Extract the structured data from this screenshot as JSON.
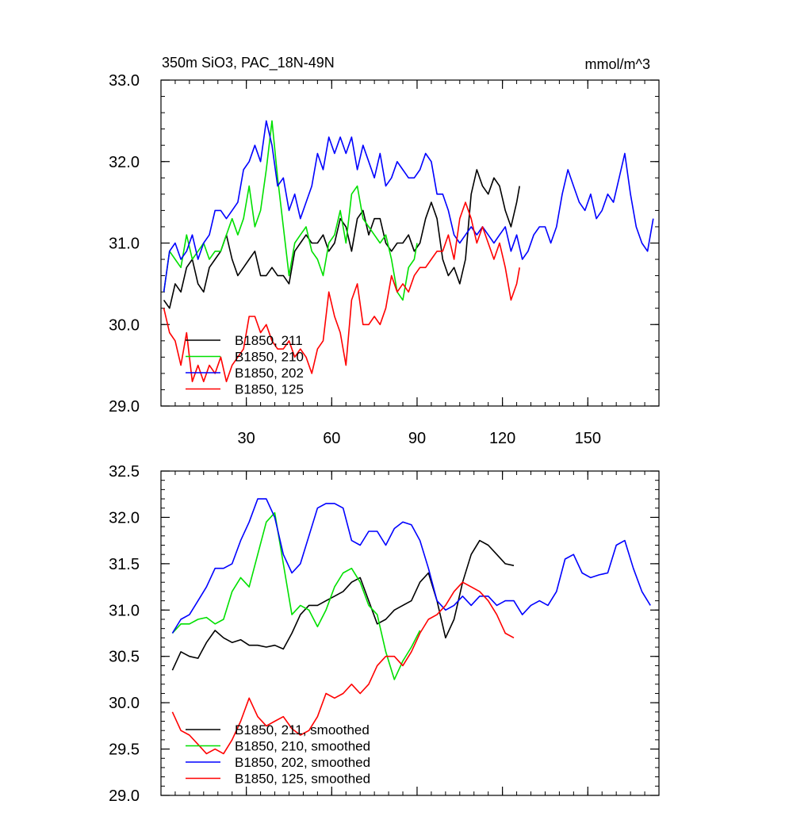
{
  "colors": {
    "B1850_211": "#000000",
    "B1850_210": "#00e000",
    "B1850_202": "#0000ff",
    "B1850_125": "#ff0000"
  },
  "chart_data": [
    {
      "type": "line",
      "title": "350m SiO3, PAC_18N-49N",
      "units": "mmol/m^3",
      "xlim": [
        0,
        175
      ],
      "ylim": [
        29.0,
        33.0
      ],
      "x_ticks": [
        30,
        60,
        90,
        120,
        150
      ],
      "x_tick_labels": [
        "30",
        "60",
        "90",
        "120",
        "150"
      ],
      "y_ticks": [
        29.0,
        30.0,
        31.0,
        32.0,
        33.0
      ],
      "y_tick_labels": [
        "29.0",
        "30.0",
        "31.0",
        "32.0",
        "33.0"
      ],
      "legend": [
        "B1850, 211",
        "B1850, 210",
        "B1850, 202",
        "B1850, 125"
      ],
      "legend_position": "bottom-left",
      "series": [
        {
          "name": "B1850, 211",
          "color_key": "B1850_211",
          "x": [
            1,
            3,
            5,
            7,
            9,
            11,
            13,
            15,
            17,
            19,
            21,
            23,
            25,
            27,
            29,
            31,
            33,
            35,
            37,
            39,
            41,
            43,
            45,
            47,
            49,
            51,
            53,
            55,
            57,
            59,
            61,
            63,
            65,
            67,
            69,
            71,
            73,
            75,
            77,
            79,
            81,
            83,
            85,
            87,
            89,
            91,
            93,
            95,
            97,
            99,
            101,
            103,
            105,
            107,
            109,
            111,
            113,
            115,
            117,
            119,
            121,
            123,
            125,
            126
          ],
          "values": [
            30.3,
            30.2,
            30.5,
            30.4,
            30.7,
            30.8,
            30.5,
            30.4,
            30.7,
            30.8,
            30.9,
            31.1,
            30.8,
            30.6,
            30.7,
            30.8,
            30.9,
            30.6,
            30.6,
            30.7,
            30.6,
            30.6,
            30.5,
            30.9,
            31.0,
            31.1,
            31.0,
            31.0,
            31.1,
            30.9,
            31.0,
            31.3,
            31.2,
            30.9,
            31.3,
            31.4,
            31.1,
            31.3,
            31.3,
            31.0,
            30.9,
            31.0,
            31.0,
            31.1,
            30.9,
            31.0,
            31.3,
            31.5,
            31.3,
            30.8,
            30.6,
            30.7,
            30.5,
            30.8,
            31.6,
            31.9,
            31.7,
            31.6,
            31.8,
            31.7,
            31.4,
            31.2,
            31.5,
            31.7
          ]
        },
        {
          "name": "B1850, 210",
          "color_key": "B1850_210",
          "x": [
            1,
            3,
            5,
            7,
            9,
            11,
            13,
            15,
            17,
            19,
            21,
            23,
            25,
            27,
            29,
            31,
            33,
            35,
            37,
            39,
            41,
            43,
            45,
            47,
            49,
            51,
            53,
            55,
            57,
            59,
            61,
            63,
            65,
            67,
            69,
            71,
            73,
            75,
            77,
            79,
            81,
            83,
            85,
            87,
            89,
            90
          ],
          "values": [
            30.4,
            30.9,
            30.8,
            30.7,
            31.1,
            30.8,
            30.9,
            31.0,
            30.8,
            30.9,
            30.9,
            31.1,
            31.3,
            31.1,
            31.3,
            31.7,
            31.2,
            31.4,
            31.9,
            32.5,
            31.8,
            31.2,
            30.6,
            31.0,
            31.1,
            31.2,
            30.9,
            30.8,
            30.6,
            31.0,
            31.1,
            31.4,
            31.0,
            31.6,
            31.7,
            31.3,
            31.2,
            31.1,
            31.0,
            31.1,
            30.8,
            30.4,
            30.3,
            30.7,
            30.8,
            31.0
          ]
        },
        {
          "name": "B1850, 202",
          "color_key": "B1850_202",
          "x": [
            1,
            3,
            5,
            7,
            9,
            11,
            13,
            15,
            17,
            19,
            21,
            23,
            25,
            27,
            29,
            31,
            33,
            35,
            37,
            39,
            41,
            43,
            45,
            47,
            49,
            51,
            53,
            55,
            57,
            59,
            61,
            63,
            65,
            67,
            69,
            71,
            73,
            75,
            77,
            79,
            81,
            83,
            85,
            87,
            89,
            91,
            93,
            95,
            97,
            99,
            101,
            103,
            105,
            107,
            109,
            111,
            113,
            115,
            117,
            119,
            121,
            123,
            125,
            127,
            129,
            131,
            133,
            135,
            137,
            139,
            141,
            143,
            145,
            147,
            149,
            151,
            153,
            155,
            157,
            159,
            161,
            163,
            165,
            167,
            169,
            171,
            173
          ],
          "values": [
            30.4,
            30.9,
            31.0,
            30.8,
            30.9,
            31.1,
            30.8,
            31.0,
            31.1,
            31.4,
            31.4,
            31.3,
            31.4,
            31.5,
            31.9,
            32.0,
            32.2,
            32.0,
            32.5,
            32.2,
            31.7,
            31.8,
            31.4,
            31.6,
            31.3,
            31.5,
            31.7,
            32.1,
            31.9,
            32.3,
            32.1,
            32.3,
            32.1,
            32.3,
            31.9,
            32.2,
            32.0,
            31.8,
            32.1,
            31.7,
            31.8,
            32.0,
            31.9,
            31.8,
            31.8,
            31.9,
            32.1,
            32.0,
            31.6,
            31.6,
            31.4,
            31.1,
            31.0,
            31.1,
            31.2,
            31.1,
            31.2,
            31.1,
            31.0,
            31.1,
            31.2,
            30.9,
            31.1,
            30.8,
            30.9,
            31.1,
            31.2,
            31.2,
            31.0,
            31.2,
            31.6,
            31.9,
            31.7,
            31.5,
            31.4,
            31.6,
            31.3,
            31.4,
            31.6,
            31.5,
            31.8,
            32.1,
            31.6,
            31.2,
            31.0,
            30.9,
            31.3
          ]
        },
        {
          "name": "B1850, 125",
          "color_key": "B1850_125",
          "x": [
            1,
            3,
            5,
            7,
            9,
            11,
            13,
            15,
            17,
            19,
            21,
            23,
            25,
            27,
            29,
            31,
            33,
            35,
            37,
            39,
            41,
            43,
            45,
            47,
            49,
            51,
            53,
            55,
            57,
            59,
            61,
            63,
            65,
            67,
            69,
            71,
            73,
            75,
            77,
            79,
            81,
            83,
            85,
            87,
            89,
            91,
            93,
            95,
            97,
            99,
            101,
            103,
            105,
            107,
            109,
            111,
            113,
            115,
            117,
            119,
            121,
            123,
            125,
            126
          ],
          "values": [
            30.2,
            29.9,
            29.8,
            29.5,
            29.9,
            29.3,
            29.5,
            29.3,
            29.5,
            29.4,
            29.6,
            29.3,
            29.5,
            29.6,
            29.7,
            30.1,
            30.1,
            29.9,
            30.0,
            29.8,
            29.7,
            29.7,
            29.8,
            29.6,
            29.7,
            29.6,
            29.4,
            29.7,
            29.8,
            30.4,
            30.1,
            29.9,
            29.5,
            30.3,
            30.5,
            30.0,
            30.0,
            30.1,
            30.0,
            30.2,
            30.6,
            30.4,
            30.5,
            30.4,
            30.6,
            30.7,
            30.7,
            30.8,
            30.9,
            30.9,
            31.1,
            30.8,
            31.3,
            31.5,
            31.3,
            31.0,
            31.2,
            31.0,
            30.8,
            31.0,
            30.7,
            30.3,
            30.5,
            30.7
          ]
        }
      ]
    },
    {
      "type": "line",
      "xlim": [
        0,
        175
      ],
      "ylim": [
        29.0,
        32.5
      ],
      "y_ticks": [
        29.0,
        29.5,
        30.0,
        30.5,
        31.0,
        31.5,
        32.0,
        32.5
      ],
      "y_tick_labels": [
        "29.0",
        "29.5",
        "30.0",
        "30.5",
        "31.0",
        "31.5",
        "32.0",
        "32.5"
      ],
      "x_ticks": [
        30,
        60,
        90,
        120,
        150
      ],
      "legend": [
        "B1850, 211, smoothed",
        "B1850, 210, smoothed",
        "B1850, 202, smoothed",
        "B1850, 125, smoothed"
      ],
      "legend_position": "bottom-left",
      "series": [
        {
          "name": "B1850, 211, smoothed",
          "color_key": "B1850_211",
          "x": [
            4,
            7,
            10,
            13,
            16,
            19,
            22,
            25,
            28,
            31,
            34,
            37,
            40,
            43,
            46,
            49,
            52,
            55,
            58,
            61,
            64,
            67,
            70,
            73,
            76,
            79,
            82,
            85,
            88,
            91,
            94,
            97,
            100,
            103,
            106,
            109,
            112,
            115,
            118,
            121,
            124
          ],
          "values": [
            30.35,
            30.55,
            30.5,
            30.48,
            30.65,
            30.78,
            30.7,
            30.65,
            30.68,
            30.62,
            30.62,
            30.6,
            30.62,
            30.58,
            30.75,
            30.95,
            31.05,
            31.05,
            31.1,
            31.15,
            31.2,
            31.3,
            31.35,
            31.1,
            30.85,
            30.9,
            31.0,
            31.05,
            31.1,
            31.3,
            31.4,
            31.1,
            30.7,
            30.9,
            31.3,
            31.6,
            31.75,
            31.7,
            31.6,
            31.5,
            31.48
          ]
        },
        {
          "name": "B1850, 210, smoothed",
          "color_key": "B1850_210",
          "x": [
            4,
            7,
            10,
            13,
            16,
            19,
            22,
            25,
            28,
            31,
            34,
            37,
            40,
            43,
            46,
            49,
            52,
            55,
            58,
            61,
            64,
            67,
            70,
            73,
            76,
            79,
            82,
            85,
            88,
            91
          ],
          "values": [
            30.75,
            30.85,
            30.85,
            30.9,
            30.92,
            30.85,
            30.9,
            31.2,
            31.35,
            31.25,
            31.6,
            31.95,
            32.05,
            31.5,
            30.95,
            31.05,
            31.0,
            30.82,
            31.0,
            31.25,
            31.4,
            31.45,
            31.3,
            31.05,
            30.95,
            30.55,
            30.25,
            30.45,
            30.6,
            30.78
          ]
        },
        {
          "name": "B1850, 202, smoothed",
          "color_key": "B1850_202",
          "x": [
            4,
            7,
            10,
            13,
            16,
            19,
            22,
            25,
            28,
            31,
            34,
            37,
            40,
            43,
            46,
            49,
            52,
            55,
            58,
            61,
            64,
            67,
            70,
            73,
            76,
            79,
            82,
            85,
            88,
            91,
            94,
            97,
            100,
            103,
            106,
            109,
            112,
            115,
            118,
            121,
            124,
            127,
            130,
            133,
            136,
            139,
            142,
            145,
            148,
            151,
            154,
            157,
            160,
            163,
            166,
            169,
            172
          ],
          "values": [
            30.75,
            30.9,
            30.95,
            31.1,
            31.25,
            31.45,
            31.45,
            31.5,
            31.75,
            31.95,
            32.2,
            32.2,
            32.0,
            31.6,
            31.4,
            31.5,
            31.8,
            32.1,
            32.15,
            32.15,
            32.1,
            31.75,
            31.7,
            31.85,
            31.85,
            31.7,
            31.88,
            31.95,
            31.92,
            31.75,
            31.45,
            31.1,
            31.0,
            31.05,
            31.15,
            31.05,
            31.15,
            31.15,
            31.05,
            31.1,
            31.1,
            30.95,
            31.05,
            31.1,
            31.05,
            31.2,
            31.55,
            31.6,
            31.4,
            31.35,
            31.38,
            31.4,
            31.7,
            31.75,
            31.45,
            31.2,
            31.05
          ]
        },
        {
          "name": "B1850, 125, smoothed",
          "color_key": "B1850_125",
          "x": [
            4,
            7,
            10,
            13,
            16,
            19,
            22,
            25,
            28,
            31,
            34,
            37,
            40,
            43,
            46,
            49,
            52,
            55,
            58,
            61,
            64,
            67,
            70,
            73,
            76,
            79,
            82,
            85,
            88,
            91,
            94,
            97,
            100,
            103,
            106,
            109,
            112,
            115,
            118,
            121,
            124
          ],
          "values": [
            29.9,
            29.7,
            29.65,
            29.55,
            29.45,
            29.5,
            29.45,
            29.6,
            29.8,
            30.05,
            29.85,
            29.75,
            29.8,
            29.85,
            29.72,
            29.65,
            29.7,
            29.85,
            30.1,
            30.05,
            30.1,
            30.2,
            30.1,
            30.2,
            30.4,
            30.5,
            30.5,
            30.4,
            30.55,
            30.75,
            30.9,
            30.95,
            31.05,
            31.2,
            31.3,
            31.25,
            31.2,
            31.1,
            30.95,
            30.75,
            30.7
          ]
        }
      ]
    }
  ]
}
